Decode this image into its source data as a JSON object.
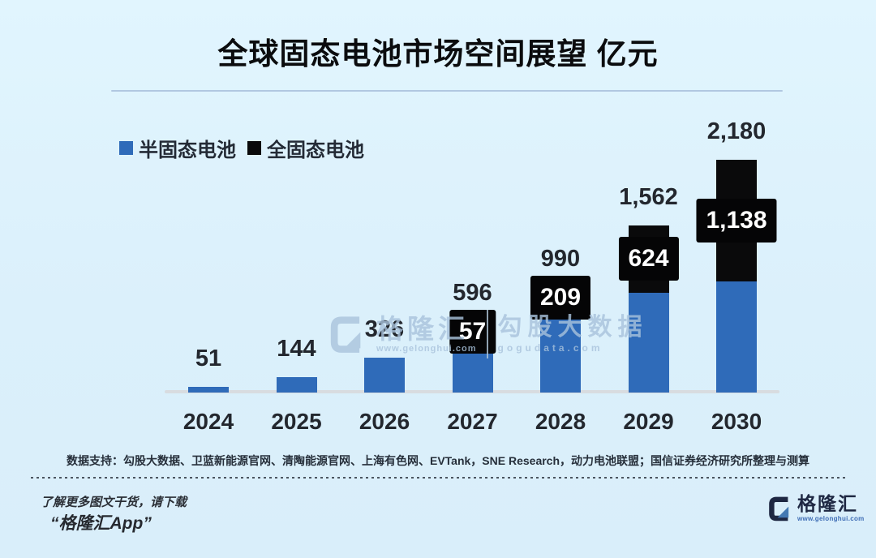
{
  "title": "全球固态电池市场空间展望 亿元",
  "legend": [
    {
      "label": "半固态电池",
      "color": "#2f6bb9"
    },
    {
      "label": "全固态电池",
      "color": "#0a0a0b"
    }
  ],
  "chart_data": {
    "type": "bar",
    "stacked": true,
    "title": "全球固态电池市场空间展望",
    "unit": "亿元",
    "categories": [
      "2024",
      "2025",
      "2026",
      "2027",
      "2028",
      "2029",
      "2030"
    ],
    "series": [
      {
        "name": "半固态电池",
        "color": "#2f6bb9",
        "values": [
          51,
          144,
          326,
          539,
          781,
          938,
          1042
        ]
      },
      {
        "name": "全固态电池",
        "color": "#0a0a0b",
        "values": [
          0,
          0,
          0,
          57,
          209,
          624,
          1138
        ]
      }
    ],
    "totals": [
      51,
      144,
      326,
      596,
      990,
      1562,
      2180
    ],
    "total_labels": [
      "51",
      "144",
      "326",
      "596",
      "990",
      "1,562",
      "2,180"
    ],
    "segment_labels": [
      "",
      "",
      "",
      "57",
      "209",
      "624",
      "1,138"
    ],
    "ylim": [
      0,
      2180
    ],
    "grid": false,
    "legend_position": "top-left"
  },
  "source": "数据支持：勾股大数据、卫蓝新能源官网、清陶能源官网、上海有色网、EVTank，SNE Research，动力电池联盟；国信证券经济研究所整理与测算",
  "watermark": {
    "brand": "格隆汇",
    "brand_url": "www.gelonghui.com",
    "data_brand": "勾股大数据",
    "data_url": "gogudata.com"
  },
  "footer": {
    "promo_line1": "了解更多图文干货，请下载",
    "promo_line2": "“格隆汇App”",
    "logo_text": "格隆汇",
    "logo_url": "www.gelonghui.com"
  },
  "colors": {
    "background": "#dcf1fc",
    "bar_blue": "#2f6bb9",
    "bar_black": "#0a0a0b",
    "label_dark": "#23272e",
    "baseline": "#d8dce0"
  }
}
